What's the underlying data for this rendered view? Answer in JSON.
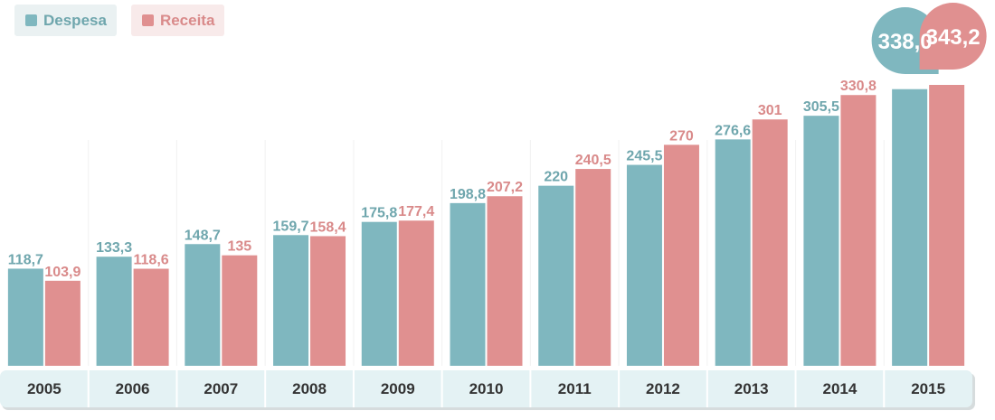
{
  "legend": {
    "despesa": {
      "label": "Despesa",
      "color": "#7fb7bf"
    },
    "receita": {
      "label": "Receita",
      "color": "#e09090"
    }
  },
  "chart_data": {
    "type": "bar",
    "categories": [
      "2005",
      "2006",
      "2007",
      "2008",
      "2009",
      "2010",
      "2011",
      "2012",
      "2013",
      "2014",
      "2015"
    ],
    "series": [
      {
        "name": "Despesa",
        "values": [
          118.7,
          133.3,
          148.7,
          159.7,
          175.8,
          198.8,
          220,
          245.5,
          276.6,
          305.5,
          338.0
        ],
        "labels": [
          "118,7",
          "133,3",
          "148,7",
          "159,7",
          "175,8",
          "198,8",
          "220",
          "245,5",
          "276,6",
          "305,5",
          "338,0"
        ]
      },
      {
        "name": "Receita",
        "values": [
          103.9,
          118.6,
          135,
          158.4,
          177.4,
          207.2,
          240.5,
          270,
          301,
          330.8,
          343.2
        ],
        "labels": [
          "103,9",
          "118,6",
          "135",
          "158,4",
          "177,4",
          "207,2",
          "240,5",
          "270",
          "301",
          "330,8",
          "343,2"
        ]
      }
    ],
    "ylim": [
      0,
      343.2
    ],
    "grid": false,
    "legend_position": "top-left",
    "highlight_last": true,
    "colors": {
      "despesa": "#7fb7bf",
      "receita": "#e09090",
      "despesa_text": "#6fa6ad",
      "receita_text": "#d98a8a",
      "axis_band": "#e4f2f4"
    }
  }
}
